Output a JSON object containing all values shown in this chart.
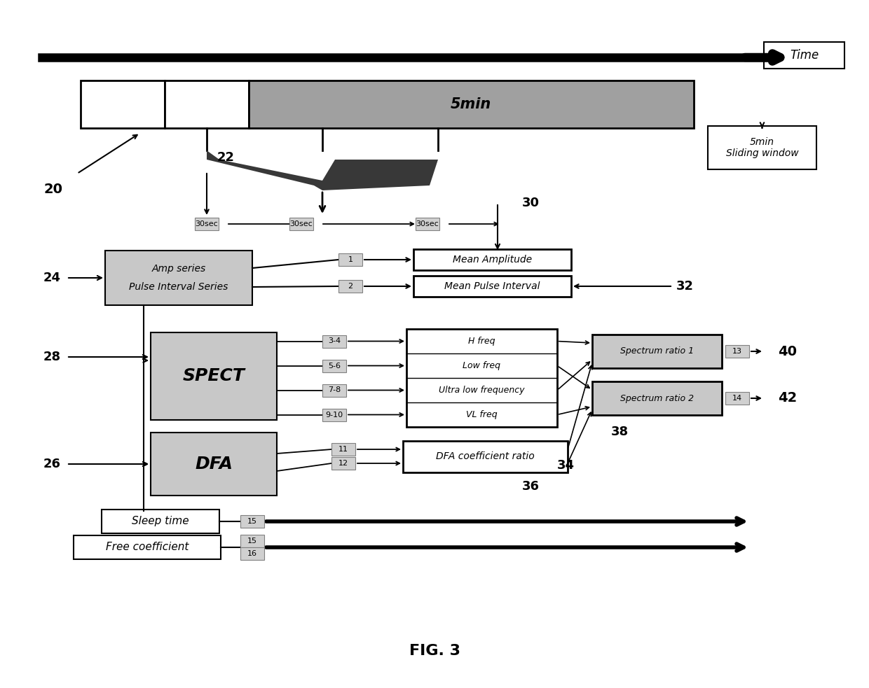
{
  "bg_color": "#ffffff",
  "fig_title": "FIG. 3",
  "time_label": "Time",
  "sliding_window_label": "5min\nSliding window",
  "label_20": "20",
  "label_22": "22",
  "label_24": "24",
  "label_26": "26",
  "label_28": "28",
  "label_30": "30",
  "label_32": "32",
  "label_34": "34",
  "label_36": "36",
  "label_38": "38",
  "label_40": "40",
  "label_42": "42",
  "box_5min_label": "5min",
  "box_amp_line1": "Amp series",
  "box_amp_line2": "Pulse Interval Series",
  "box_spect_label": "SPECT",
  "box_dfa_label": "DFA",
  "box_mean_amp": "Mean Amplitude",
  "box_mean_pulse": "Mean Pulse Interval",
  "box_hfreq": "H freq",
  "box_lowfreq": "Low freq",
  "box_ultralow": "Ultra low frequency",
  "box_vlfreq": "VL freq",
  "box_spec_ratio1": "Spectrum ratio 1",
  "box_spec_ratio2": "Spectrum ratio 2",
  "box_dfa_coeff": "DFA coefficient ratio",
  "sleep_time_label": "Sleep time",
  "free_coeff_label": "Free coefficient",
  "tag_30sec_1": "30sec",
  "tag_30sec_2": "30sec",
  "tag_30sec_3": "30sec",
  "tag_1": "1",
  "tag_2": "2",
  "tag_34": "3-4",
  "tag_56": "5-6",
  "tag_78": "7-8",
  "tag_910": "9-10",
  "tag_11": "11",
  "tag_12": "12",
  "tag_13": "13",
  "tag_14": "14",
  "tag_15": "15",
  "tag_16": "16",
  "gray_light": "#c8c8c8",
  "gray_tag": "#d0d0d0",
  "gray_dark": "#808080",
  "gray_5min": "#a0a0a0"
}
